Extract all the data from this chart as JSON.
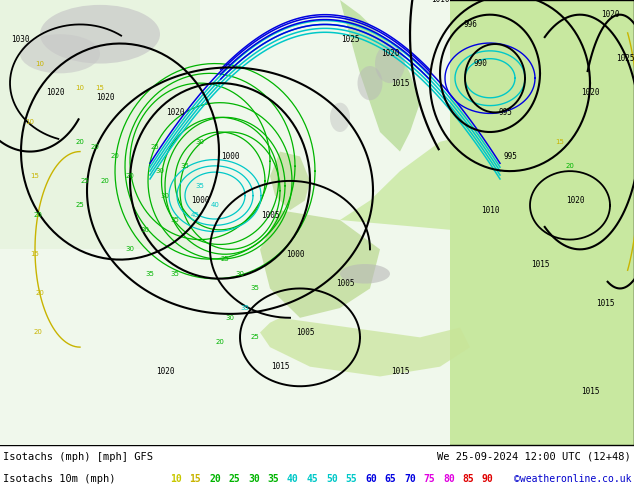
{
  "title_left": "Isotachs (mph) [mph] GFS",
  "title_right": "We 25-09-2024 12:00 UTC (12+48)",
  "legend_label": "Isotachs 10m (mph)",
  "copyright": "©weatheronline.co.uk",
  "legend_values": [
    10,
    15,
    20,
    25,
    30,
    35,
    40,
    45,
    50,
    55,
    60,
    65,
    70,
    75,
    80,
    85,
    90
  ],
  "legend_colors": [
    "#c8c800",
    "#c8b400",
    "#00b400",
    "#00b400",
    "#00b400",
    "#00b400",
    "#00c8c8",
    "#00c8c8",
    "#00c8c8",
    "#00c8c8",
    "#0000e0",
    "#0000e0",
    "#0000e0",
    "#e000e0",
    "#e000e0",
    "#e00000",
    "#e00000"
  ],
  "fig_width": 6.34,
  "fig_height": 4.9,
  "dpi": 100,
  "map_colors": {
    "land_light": "#d4efc4",
    "land_green": "#b8dca8",
    "sea": "#e8f4e8",
    "mountain": "#c8c8c8",
    "bg": "#f0f8f0"
  }
}
